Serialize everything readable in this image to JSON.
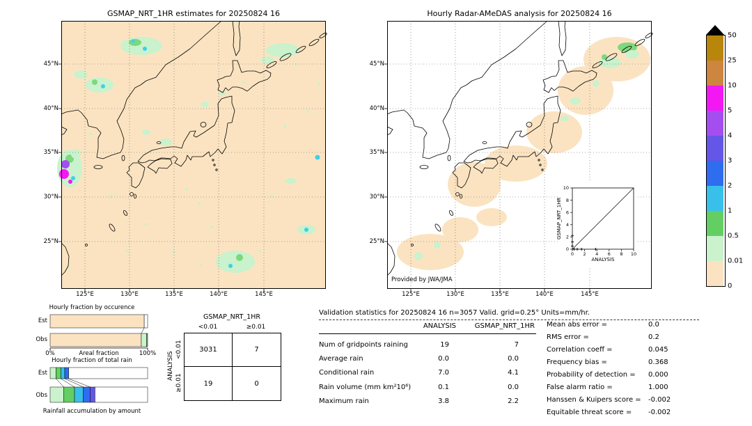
{
  "left_map": {
    "title": "GSMAP_NRT_1HR estimates for 20250824 16",
    "lat_ticks": [
      "45°N",
      "40°N",
      "35°N",
      "30°N",
      "25°N"
    ],
    "lon_ticks": [
      "125°E",
      "130°E",
      "135°E",
      "140°E",
      "145°E"
    ]
  },
  "right_map": {
    "title": "Hourly Radar-AMeDAS analysis for 20250824 16",
    "lat_ticks": [
      "45°N",
      "40°N",
      "35°N",
      "30°N",
      "25°N"
    ],
    "lon_ticks": [
      "125°E",
      "130°E",
      "135°E",
      "140°E",
      "145°E"
    ],
    "credit": "Provided by JWA/JMA",
    "inset": {
      "xlabel": "ANALYSIS",
      "ylabel": "GSMAP_NRT_1HR",
      "x_ticks": [
        "0",
        "2",
        "4",
        "6",
        "8",
        "10"
      ],
      "y_ticks": [
        "0",
        "2",
        "4",
        "6",
        "8",
        "10"
      ],
      "points": [
        [
          0.3,
          0
        ],
        [
          0.8,
          0
        ],
        [
          1.5,
          0
        ],
        [
          3.8,
          0
        ],
        [
          0,
          0.5
        ],
        [
          0,
          1.2
        ],
        [
          0,
          2.2
        ]
      ]
    }
  },
  "colorbar": {
    "tick_labels": [
      "50",
      "25",
      "10",
      "5",
      "4",
      "3",
      "2",
      "1",
      "0.5",
      "0.01",
      "0"
    ],
    "colors": [
      "#b8860b",
      "#cd853f",
      "#f318f3",
      "#a44ef0",
      "#6456e6",
      "#2e6cf0",
      "#38c0ea",
      "#63cf63",
      "#c9f2cd",
      "#fbe3c1"
    ],
    "overflow_arrow_color": "#000000",
    "units": "mm/hr"
  },
  "occurrence_chart": {
    "title": "Hourly fraction by occurence",
    "rows": [
      {
        "label": "Est",
        "segments": [
          {
            "color": "#fbe3c1",
            "pct": 96.5
          }
        ]
      },
      {
        "label": "Obs",
        "segments": [
          {
            "color": "#fbe3c1",
            "pct": 93.5
          },
          {
            "color": "#c9f2cd",
            "pct": 5.5
          },
          {
            "color": "#63cf63",
            "pct": 1.0
          }
        ]
      }
    ],
    "x_min_label": "0%",
    "x_axis_label": "Areal fraction",
    "x_max_label": "100%"
  },
  "total_rain_chart": {
    "title": "Hourly fraction of total rain",
    "rows": [
      {
        "label": "Est",
        "segments": [
          {
            "color": "#c9f2cd",
            "pct": 6
          },
          {
            "color": "#63cf63",
            "pct": 5
          },
          {
            "color": "#38c0ea",
            "pct": 4
          },
          {
            "color": "#2e6cf0",
            "pct": 4
          }
        ]
      },
      {
        "label": "Obs",
        "segments": [
          {
            "color": "#c9f2cd",
            "pct": 14
          },
          {
            "color": "#63cf63",
            "pct": 11
          },
          {
            "color": "#38c0ea",
            "pct": 9
          },
          {
            "color": "#2e6cf0",
            "pct": 7
          },
          {
            "color": "#6456e6",
            "pct": 5
          }
        ]
      }
    ],
    "caption": "Rainfall accumulation by amount"
  },
  "contingency_table": {
    "col_group_label": "GSMAP_NRT_1HR",
    "row_group_label": "ANALYSIS",
    "col_labels": [
      "<0.01",
      "≥0.01"
    ],
    "row_labels": [
      "<0.01",
      "≥0.01"
    ],
    "values": [
      [
        "3031",
        "7"
      ],
      [
        "19",
        "0"
      ]
    ]
  },
  "validation": {
    "title": "Validation statistics for 20250824 16  n=3057 Valid. grid=0.25° Units=mm/hr.",
    "col_headers": [
      "ANALYSIS",
      "GSMAP_NRT_1HR"
    ],
    "rows": [
      {
        "label": "Num of gridpoints raining",
        "analysis": "19",
        "gsmap": "7"
      },
      {
        "label": "Average rain",
        "analysis": "0.0",
        "gsmap": "0.0"
      },
      {
        "label": "Conditional rain",
        "analysis": "7.0",
        "gsmap": "4.1"
      },
      {
        "label": "Rain volume (mm km²10⁶)",
        "analysis": "0.1",
        "gsmap": "0.0"
      },
      {
        "label": "Maximum rain",
        "analysis": "3.8",
        "gsmap": "2.2"
      }
    ],
    "scores": [
      {
        "label": "Mean abs error =",
        "value": "0.0"
      },
      {
        "label": "RMS error =",
        "value": "0.2"
      },
      {
        "label": "Correlation coeff =",
        "value": "0.045"
      },
      {
        "label": "Frequency bias =",
        "value": "0.368"
      },
      {
        "label": "Probability of detection =",
        "value": "0.000"
      },
      {
        "label": "False alarm ratio =",
        "value": "1.000"
      },
      {
        "label": "Hanssen & Kuipers score =",
        "value": "-0.002"
      },
      {
        "label": "Equitable threat score =",
        "value": "-0.002"
      }
    ]
  },
  "chart_data": [
    {
      "type": "heatmap",
      "title": "GSMAP_NRT_1HR estimates for 20250824 16",
      "x_ticks": [
        "125°E",
        "130°E",
        "135°E",
        "140°E",
        "145°E"
      ],
      "y_ticks": [
        "45°N",
        "40°N",
        "35°N",
        "30°N",
        "25°N"
      ],
      "units": "mm/hr",
      "levels": [
        0,
        0.01,
        0.5,
        1,
        2,
        3,
        4,
        5,
        10,
        25,
        50
      ],
      "summary": "Mostly 0 mm/hr (peach); scattered 0.01-2 mm/hr patches over the Sea of Japan, southern Hokkaido, and south of Honshu; isolated 5-10 mm/hr cells near 32-34N 122-124E"
    },
    {
      "type": "heatmap",
      "title": "Hourly Radar-AMeDAS analysis for 20250824 16",
      "x_ticks": [
        "125°E",
        "130°E",
        "135°E",
        "140°E",
        "145°E"
      ],
      "y_ticks": [
        "45°N",
        "40°N",
        "35°N",
        "30°N",
        "25°N"
      ],
      "units": "mm/hr",
      "levels": [
        0,
        0.01,
        0.5,
        1,
        2,
        3,
        4,
        5,
        10,
        25,
        50
      ],
      "summary": "Radar coverage band (0 mm/hr) along the Japanese archipelago with 0.01-1 mm/hr rain over eastern Hokkaido",
      "credit": "Provided by JWA/JMA"
    },
    {
      "type": "scatter",
      "title": "ANALYSIS vs GSMAP_NRT_1HR inset",
      "xlabel": "ANALYSIS",
      "ylabel": "GSMAP_NRT_1HR",
      "xlim": [
        0,
        10
      ],
      "ylim": [
        0,
        10
      ],
      "x_ticks": [
        0,
        2,
        4,
        6,
        8,
        10
      ],
      "y_ticks": [
        0,
        2,
        4,
        6,
        8,
        10
      ],
      "reference_line": "y = x",
      "points_approx": [
        [
          0.3,
          0
        ],
        [
          0.8,
          0
        ],
        [
          1.5,
          0
        ],
        [
          3.8,
          0
        ],
        [
          0,
          0.5
        ],
        [
          0,
          1.2
        ],
        [
          0,
          2.2
        ]
      ]
    },
    {
      "type": "bar",
      "title": "Hourly fraction by occurence",
      "orientation": "horizontal-stacked",
      "categories": [
        "Est",
        "Obs"
      ],
      "xlabel": "Areal fraction",
      "xlim_pct": [
        0,
        100
      ],
      "series": [
        {
          "name": "0-0.01 mm/hr",
          "color": "#fbe3c1",
          "values_pct": [
            96.5,
            93.5
          ]
        },
        {
          "name": "0.01-0.5 mm/hr",
          "color": "#c9f2cd",
          "values_pct": [
            0,
            5.5
          ]
        },
        {
          "name": "0.5-1 mm/hr",
          "color": "#63cf63",
          "values_pct": [
            0,
            1.0
          ]
        }
      ]
    },
    {
      "type": "bar",
      "title": "Hourly fraction of total rain",
      "orientation": "horizontal-stacked",
      "categories": [
        "Est",
        "Obs"
      ],
      "caption": "Rainfall accumulation by amount",
      "xlim_pct": [
        0,
        100
      ],
      "series": [
        {
          "name": "0.01-0.5 mm/hr",
          "color": "#c9f2cd",
          "values_pct": [
            6,
            14
          ]
        },
        {
          "name": "0.5-1 mm/hr",
          "color": "#63cf63",
          "values_pct": [
            5,
            11
          ]
        },
        {
          "name": "1-2 mm/hr",
          "color": "#38c0ea",
          "values_pct": [
            4,
            9
          ]
        },
        {
          "name": "2-3 mm/hr",
          "color": "#2e6cf0",
          "values_pct": [
            4,
            7
          ]
        },
        {
          "name": "3-4 mm/hr",
          "color": "#6456e6",
          "values_pct": [
            0,
            5
          ]
        }
      ]
    },
    {
      "type": "table",
      "title": "Contingency table (number of gridpoints)",
      "columns": [
        "GSMAP_NRT_1HR <0.01",
        "GSMAP_NRT_1HR ≥0.01"
      ],
      "rows": [
        "ANALYSIS <0.01",
        "ANALYSIS ≥0.01"
      ],
      "values": [
        [
          3031,
          7
        ],
        [
          19,
          0
        ]
      ]
    },
    {
      "type": "table",
      "title": "Validation statistics for 20250824 16",
      "n": 3057,
      "valid_grid": "0.25°",
      "units": "mm/hr",
      "columns": [
        "ANALYSIS",
        "GSMAP_NRT_1HR"
      ],
      "rows": [
        {
          "label": "Num of gridpoints raining",
          "values": [
            19,
            7
          ]
        },
        {
          "label": "Average rain",
          "values": [
            0.0,
            0.0
          ]
        },
        {
          "label": "Conditional rain",
          "values": [
            7.0,
            4.1
          ]
        },
        {
          "label": "Rain volume (mm km²10⁶)",
          "values": [
            0.1,
            0.0
          ]
        },
        {
          "label": "Maximum rain",
          "values": [
            3.8,
            2.2
          ]
        }
      ],
      "scores": {
        "Mean abs error": 0.0,
        "RMS error": 0.2,
        "Correlation coeff": 0.045,
        "Frequency bias": 0.368,
        "Probability of detection": 0.0,
        "False alarm ratio": 1.0,
        "Hanssen & Kuipers score": -0.002,
        "Equitable threat score": -0.002
      }
    }
  ]
}
